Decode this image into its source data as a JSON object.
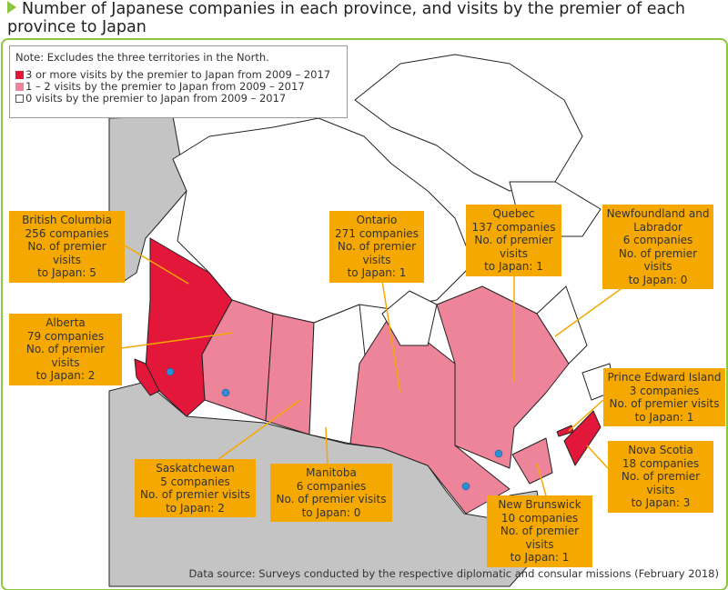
{
  "title": "Number of Japanese companies in each province, and visits by the premier of each province to Japan",
  "legend": {
    "note": "Note: Excludes the three territories in the North.",
    "items": [
      {
        "label": "3 or more visits by the premier to Japan from 2009 – 2017",
        "color": "#e3173a"
      },
      {
        "label": "1 – 2 visits by the premier to Japan from 2009 – 2017",
        "color": "#ee8499"
      },
      {
        "label": "0 visits by the premier to Japan from 2009 – 2017",
        "color": "#ffffff"
      }
    ]
  },
  "colors": {
    "label_bg": "#f5a800",
    "frame": "#8dc63f",
    "us_land": "#c4c4c4",
    "city_dot": "#2a8fd6"
  },
  "provinces": [
    {
      "name": "British Columbia",
      "companies": "256 companies",
      "visits_label": "No. of premier visits",
      "visits": "to Japan: 5"
    },
    {
      "name": "Alberta",
      "companies": "79 companies",
      "visits_label": "No. of premier visits",
      "visits": "to Japan: 2"
    },
    {
      "name": "Ontario",
      "companies": "271 companies",
      "visits_label": "No. of premier visits",
      "visits": "to Japan: 1"
    },
    {
      "name": "Quebec",
      "companies": "137 companies",
      "visits_label": "No. of premier visits",
      "visits": "to Japan: 1"
    },
    {
      "name": "Newfoundland and Labrador",
      "companies": "6 companies",
      "visits_label": "No. of premier visits",
      "visits": "to Japan: 0"
    },
    {
      "name": "Prince Edward Island",
      "companies": "3 companies",
      "visits_label": "No. of premier visits",
      "visits": "to Japan: 1"
    },
    {
      "name": "Nova Scotia",
      "companies": "18 companies",
      "visits_label": "No. of premier visits",
      "visits": "to Japan: 3"
    },
    {
      "name": "Saskatchewan",
      "companies": "5 companies",
      "visits_label": "No. of premier visits",
      "visits": "to Japan: 2"
    },
    {
      "name": "Manitoba",
      "companies": "6 companies",
      "visits_label": "No. of premier visits",
      "visits": "to Japan: 0"
    },
    {
      "name": "New Brunswick",
      "companies": "10 companies",
      "visits_label": "No. of premier visits",
      "visits": "to Japan: 1"
    }
  ],
  "source": "Data source: Surveys conducted by the respective diplomatic and consular missions (February 2018)"
}
